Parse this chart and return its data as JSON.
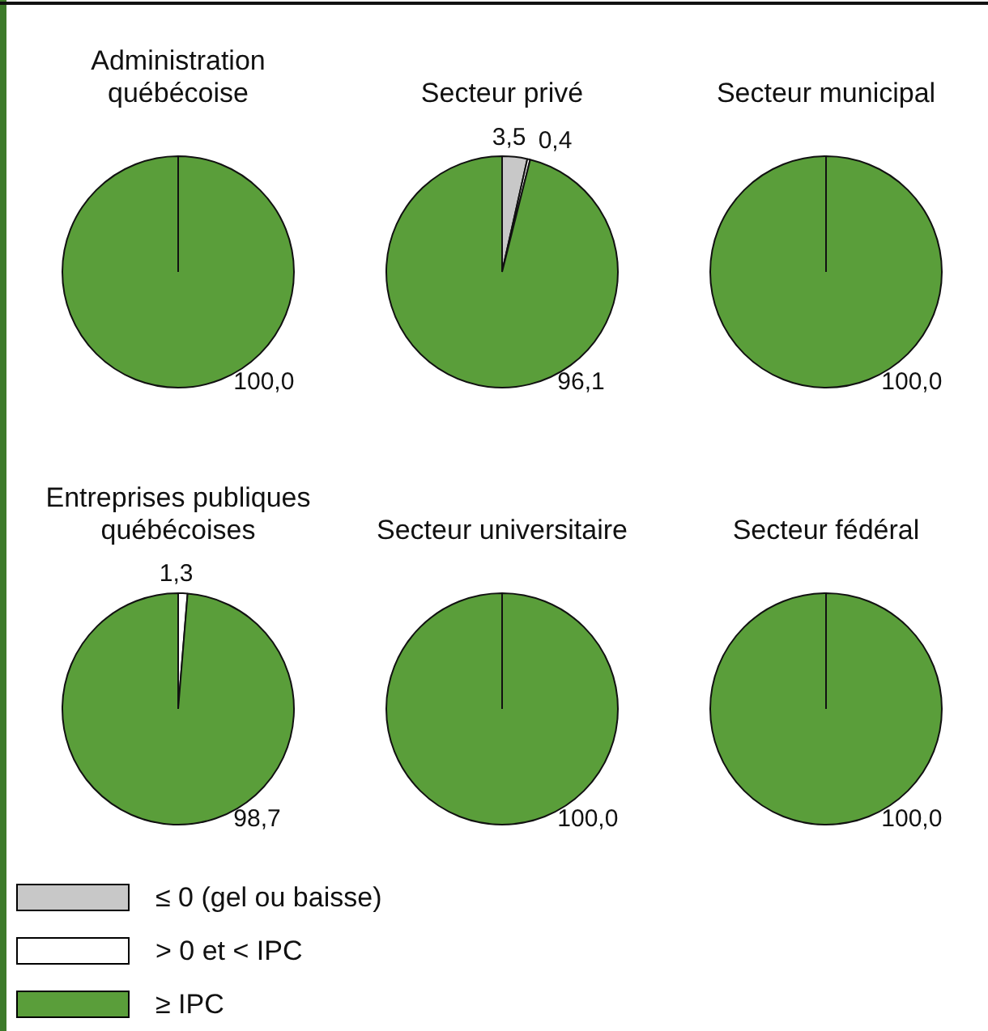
{
  "chart_data": [
    {
      "type": "pie",
      "title": "Administration québécoise",
      "categories": [
        null,
        null,
        null
      ],
      "values": [
        0,
        0,
        100
      ],
      "colors": [
        "#c8c8c8",
        "#ffffff",
        "#5a9e3a"
      ],
      "value_labels": [
        null,
        null,
        "100,0"
      ]
    },
    {
      "type": "pie",
      "title": "Secteur privé",
      "categories": [
        null,
        null,
        null
      ],
      "values": [
        3.5,
        0.4,
        96.1
      ],
      "colors": [
        "#c8c8c8",
        "#ffffff",
        "#5a9e3a"
      ],
      "value_labels": [
        "3,5",
        "0,4",
        "96,1"
      ]
    },
    {
      "type": "pie",
      "title": "Secteur municipal",
      "categories": [
        null,
        null,
        null
      ],
      "values": [
        0,
        0,
        100
      ],
      "colors": [
        "#c8c8c8",
        "#ffffff",
        "#5a9e3a"
      ],
      "value_labels": [
        null,
        null,
        "100,0"
      ]
    },
    {
      "type": "pie",
      "title": "Entreprises publiques québécoises",
      "categories": [
        null,
        null,
        null
      ],
      "values": [
        0,
        1.3,
        98.7
      ],
      "colors": [
        "#c8c8c8",
        "#ffffff",
        "#5a9e3a"
      ],
      "value_labels": [
        null,
        "1,3",
        "98,7"
      ]
    },
    {
      "type": "pie",
      "title": "Secteur universitaire",
      "categories": [
        null,
        null,
        null
      ],
      "values": [
        0,
        0,
        100
      ],
      "colors": [
        "#c8c8c8",
        "#ffffff",
        "#5a9e3a"
      ],
      "value_labels": [
        null,
        null,
        "100,0"
      ]
    },
    {
      "type": "pie",
      "title": "Secteur fédéral",
      "categories": [
        "≤ 0 (gel ou baisse)",
        "> 0 et < IPC",
        "≥ IPC"
      ],
      "values": [
        0,
        0,
        100
      ],
      "colors": [
        "#c8c8c8",
        "#ffffff",
        "#5a9e3a"
      ],
      "value_labels": [
        null,
        null,
        "100,0"
      ],
      "legend": "bottom"
    }
  ]
}
